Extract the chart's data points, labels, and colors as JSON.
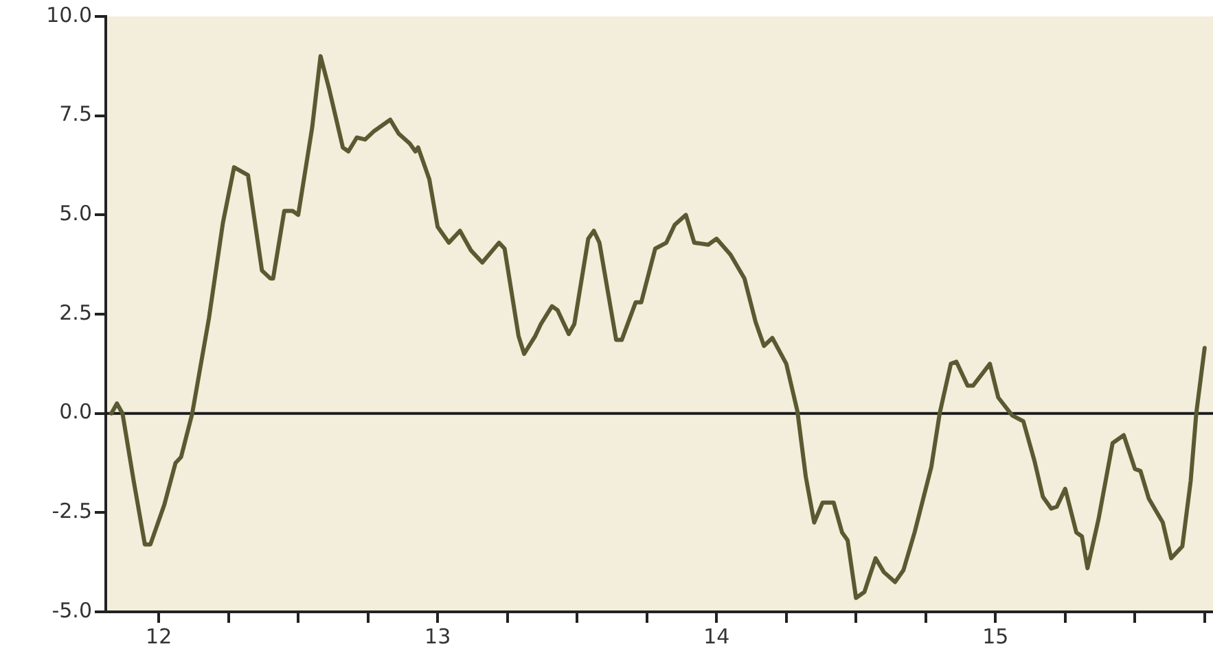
{
  "chart_data": {
    "type": "line",
    "marker": "none",
    "line_style": "solid",
    "xlim": [
      11.81,
      15.78
    ],
    "ylim": [
      -5,
      10
    ],
    "xticks": [
      12,
      {
        "value": 12.25,
        "label": null
      },
      {
        "value": 12.5,
        "label": null
      },
      {
        "value": 12.75,
        "label": null
      },
      13,
      {
        "value": 13.25,
        "label": null
      },
      {
        "value": 13.5,
        "label": null
      },
      {
        "value": 13.75,
        "label": null
      },
      14,
      {
        "value": 14.25,
        "label": null
      },
      {
        "value": 14.5,
        "label": null
      },
      {
        "value": 14.75,
        "label": null
      },
      15,
      {
        "value": 15.25,
        "label": null
      },
      {
        "value": 15.5,
        "label": null
      },
      {
        "value": 15.75,
        "label": null
      }
    ],
    "yticks": [
      {
        "value": -5,
        "label": "-5.0"
      },
      {
        "value": -2.5,
        "label": "-2.5"
      },
      {
        "value": 0,
        "label": "0.0"
      },
      {
        "value": 2.5,
        "label": "2.5"
      },
      {
        "value": 5,
        "label": "5.0"
      },
      {
        "value": 7.5,
        "label": "7.5"
      },
      {
        "value": 10,
        "label": "10.0"
      }
    ],
    "ref_lines": [
      {
        "axis": "y",
        "value": 0,
        "label": null,
        "color": "#1a1a1a"
      }
    ],
    "series": [
      {
        "color": "#5a5a32",
        "x": [
          11.83,
          11.85,
          11.87,
          11.91,
          11.95,
          11.97,
          12.02,
          12.06,
          12.08,
          12.12,
          12.18,
          12.23,
          12.27,
          12.32,
          12.37,
          12.4,
          12.41,
          12.45,
          12.48,
          12.5,
          12.55,
          12.58,
          12.61,
          12.66,
          12.68,
          12.71,
          12.74,
          12.77,
          12.83,
          12.86,
          12.9,
          12.92,
          12.93,
          12.97,
          13.0,
          13.04,
          13.08,
          13.12,
          13.16,
          13.22,
          13.24,
          13.29,
          13.31,
          13.35,
          13.37,
          13.41,
          13.43,
          13.47,
          13.49,
          13.54,
          13.56,
          13.58,
          13.64,
          13.66,
          13.71,
          13.73,
          13.78,
          13.82,
          13.85,
          13.89,
          13.92,
          13.97,
          14.0,
          14.05,
          14.1,
          14.14,
          14.17,
          14.2,
          14.25,
          14.29,
          14.32,
          14.35,
          14.38,
          14.42,
          14.45,
          14.47,
          14.5,
          14.53,
          14.57,
          14.6,
          14.64,
          14.67,
          14.71,
          14.77,
          14.8,
          14.84,
          14.86,
          14.9,
          14.92,
          14.98,
          15.01,
          15.06,
          15.1,
          15.14,
          15.17,
          15.2,
          15.22,
          15.25,
          15.29,
          15.31,
          15.33,
          15.37,
          15.42,
          15.46,
          15.5,
          15.52,
          15.55,
          15.6,
          15.63,
          15.67,
          15.7,
          15.72,
          15.75
        ],
        "values": [
          0,
          0.25,
          0,
          -1.7,
          -3.3,
          -3.3,
          -2.3,
          -1.25,
          -1.1,
          0,
          2.4,
          4.8,
          6.2,
          6.0,
          3.6,
          3.4,
          3.4,
          5.1,
          5.1,
          5.0,
          7.2,
          9.0,
          8.2,
          6.7,
          6.6,
          6.95,
          6.9,
          7.1,
          7.4,
          7.05,
          6.8,
          6.6,
          6.7,
          5.9,
          4.7,
          4.3,
          4.6,
          4.1,
          3.8,
          4.3,
          4.15,
          1.95,
          1.5,
          1.95,
          2.25,
          2.7,
          2.6,
          2.0,
          2.25,
          4.4,
          4.6,
          4.3,
          1.85,
          1.85,
          2.8,
          2.8,
          4.15,
          4.3,
          4.75,
          5.0,
          4.3,
          4.25,
          4.4,
          4.0,
          3.4,
          2.3,
          1.7,
          1.9,
          1.25,
          0.05,
          -1.6,
          -2.75,
          -2.25,
          -2.25,
          -3.0,
          -3.2,
          -4.65,
          -4.5,
          -3.65,
          -4.0,
          -4.25,
          -3.95,
          -3.0,
          -1.35,
          0,
          1.25,
          1.3,
          0.7,
          0.7,
          1.25,
          0.4,
          -0.05,
          -0.2,
          -1.2,
          -2.1,
          -2.4,
          -2.35,
          -1.9,
          -3.0,
          -3.1,
          -3.9,
          -2.65,
          -0.75,
          -0.55,
          -1.4,
          -1.45,
          -2.15,
          -2.75,
          -3.65,
          -3.35,
          -1.7,
          0,
          1.65
        ]
      }
    ]
  }
}
